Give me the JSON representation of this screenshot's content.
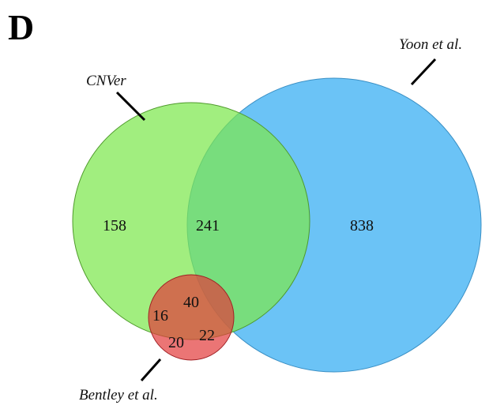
{
  "panel_label": "D",
  "sets": [
    {
      "key": "cnver",
      "label": "CNVer",
      "color": "#7DE84E"
    },
    {
      "key": "yoon",
      "label": "Yoon et al.",
      "color": "#5BBCF5"
    },
    {
      "key": "bentley",
      "label": "Bentley et al.",
      "color": "#E23A3A"
    }
  ],
  "regions": {
    "cnver_only": "158",
    "cnver_yoon": "241",
    "yoon_only": "838",
    "all_three": "40",
    "cnver_bentley": "16",
    "bentley_only": "20",
    "yoon_bentley": "22"
  }
}
